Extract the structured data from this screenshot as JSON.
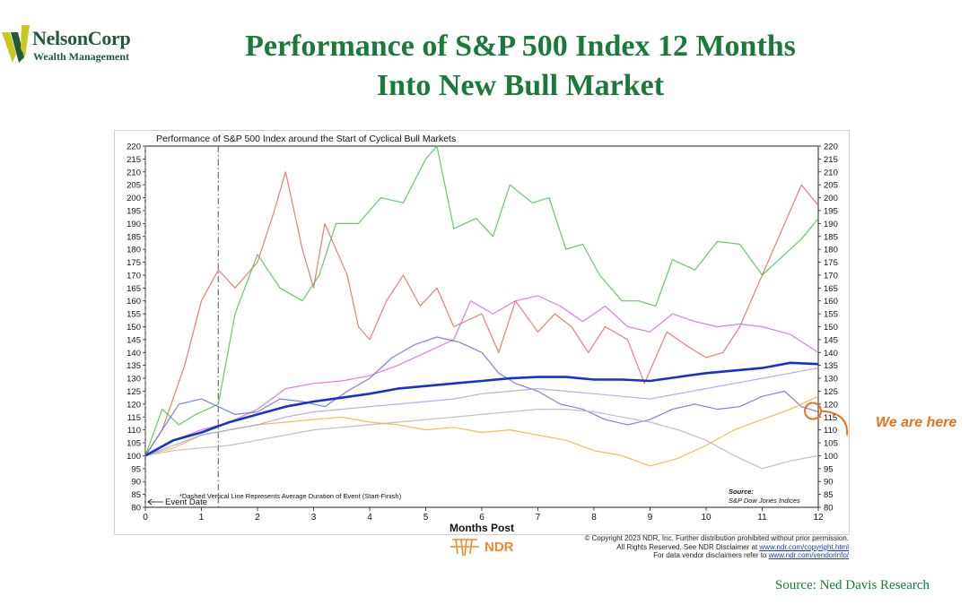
{
  "logo": {
    "name": "NelsonCorp",
    "tagline": "Wealth Management"
  },
  "slide": {
    "title_line1": "Performance of S&P 500 Index 12 Months",
    "title_line2": "Into New Bull Market",
    "annotation": "We are here",
    "source": "Source: Ned Davis Research"
  },
  "footer": {
    "ndr_logo": "NDR",
    "copyright_line1": "© Copyright 2023 NDR, Inc. Further distribution prohibited without prior permission.",
    "copyright_line2": "All Rights Reserved. See NDR Disclaimer at",
    "copyright_link1": "www.ndr.com/copyright.html",
    "copyright_line3": "For data vendor disclaimers refer to",
    "copyright_link2": "www.ndr.com/vendorinfo/"
  },
  "colors": {
    "title_green": "#1b7a3a",
    "average_line": "#1a2fd0",
    "annotation_orange": "#e8711b"
  },
  "chart_data": {
    "type": "line",
    "title": "Performance of S&P 500 Index around the Start of Cyclical Bull Markets",
    "xlabel": "Months Post",
    "ylabel": "",
    "xlim": [
      0,
      12
    ],
    "ylim": [
      80,
      220
    ],
    "x_ticks": [
      0,
      1,
      2,
      3,
      4,
      5,
      6,
      7,
      8,
      9,
      10,
      11,
      12
    ],
    "y_ticks": [
      80,
      85,
      90,
      95,
      100,
      105,
      110,
      115,
      120,
      125,
      130,
      135,
      140,
      145,
      150,
      155,
      160,
      165,
      170,
      175,
      180,
      185,
      190,
      195,
      200,
      205,
      210,
      215,
      220
    ],
    "y_axis_both_sides": true,
    "grid": false,
    "event_date_label": "Event Date",
    "vertical_lines": [
      {
        "x": 0,
        "style": "dashed"
      },
      {
        "x": 1.3,
        "style": "dash-dot"
      }
    ],
    "note": "*Dashed Vertical Line Represents Average Duration of Event (Start-Finish)",
    "source_label": "Source:",
    "source_value": "S&P Dow Jones Indices",
    "series": [
      {
        "name": "",
        "role": "average",
        "color": "#1a2fd0",
        "points": [
          [
            0,
            100
          ],
          [
            0.5,
            106
          ],
          [
            1,
            109
          ],
          [
            1.5,
            113
          ],
          [
            2,
            116
          ],
          [
            2.5,
            119
          ],
          [
            3,
            121
          ],
          [
            3.5,
            122.5
          ],
          [
            4,
            124
          ],
          [
            4.5,
            126
          ],
          [
            5,
            127
          ],
          [
            5.5,
            128
          ],
          [
            6,
            129
          ],
          [
            6.5,
            130
          ],
          [
            7,
            130.5
          ],
          [
            7.5,
            130.5
          ],
          [
            8,
            129.5
          ],
          [
            8.5,
            129.5
          ],
          [
            9,
            129
          ],
          [
            9.5,
            130.5
          ],
          [
            10,
            132
          ],
          [
            10.5,
            133
          ],
          [
            11,
            134
          ],
          [
            11.5,
            136
          ],
          [
            12,
            135.5
          ]
        ]
      },
      {
        "name": "",
        "color": "#e06a5a",
        "points": [
          [
            0,
            100
          ],
          [
            0.3,
            110
          ],
          [
            0.7,
            135
          ],
          [
            1,
            160
          ],
          [
            1.3,
            172
          ],
          [
            1.6,
            165
          ],
          [
            2,
            175
          ],
          [
            2.3,
            195
          ],
          [
            2.5,
            210
          ],
          [
            2.8,
            180
          ],
          [
            3,
            165
          ],
          [
            3.2,
            190
          ],
          [
            3.4,
            180
          ],
          [
            3.6,
            170
          ],
          [
            3.8,
            150
          ],
          [
            4,
            145
          ],
          [
            4.3,
            160
          ],
          [
            4.6,
            170
          ],
          [
            4.9,
            158
          ],
          [
            5.2,
            165
          ],
          [
            5.5,
            150
          ],
          [
            6,
            155
          ],
          [
            6.3,
            140
          ],
          [
            6.6,
            160
          ],
          [
            7,
            148
          ],
          [
            7.3,
            155
          ],
          [
            7.6,
            150
          ],
          [
            7.9,
            140
          ],
          [
            8.2,
            150
          ],
          [
            8.6,
            145
          ],
          [
            8.9,
            128
          ],
          [
            9.3,
            148
          ],
          [
            9.7,
            142
          ],
          [
            10,
            138
          ],
          [
            10.3,
            140
          ],
          [
            10.6,
            150
          ],
          [
            10.9,
            165
          ],
          [
            11.3,
            185
          ],
          [
            11.7,
            205
          ],
          [
            12,
            197
          ]
        ]
      },
      {
        "name": "",
        "color": "#4bbf4b",
        "points": [
          [
            0,
            100
          ],
          [
            0.3,
            118
          ],
          [
            0.6,
            112
          ],
          [
            0.9,
            116
          ],
          [
            1.3,
            120
          ],
          [
            1.6,
            155
          ],
          [
            2,
            178
          ],
          [
            2.4,
            165
          ],
          [
            2.8,
            160
          ],
          [
            3.1,
            170
          ],
          [
            3.4,
            190
          ],
          [
            3.8,
            190
          ],
          [
            4.2,
            200
          ],
          [
            4.6,
            198
          ],
          [
            5,
            215
          ],
          [
            5.2,
            220
          ],
          [
            5.5,
            188
          ],
          [
            5.9,
            192
          ],
          [
            6.2,
            185
          ],
          [
            6.5,
            205
          ],
          [
            6.9,
            198
          ],
          [
            7.2,
            200
          ],
          [
            7.5,
            180
          ],
          [
            7.8,
            182
          ],
          [
            8.1,
            170
          ],
          [
            8.5,
            160
          ],
          [
            8.8,
            160
          ],
          [
            9.1,
            158
          ],
          [
            9.4,
            176
          ],
          [
            9.8,
            172
          ],
          [
            10.2,
            183
          ],
          [
            10.6,
            182
          ],
          [
            11,
            170
          ],
          [
            11.4,
            178
          ],
          [
            11.7,
            184
          ],
          [
            12,
            192
          ]
        ]
      },
      {
        "name": "",
        "color": "#d668d6",
        "points": [
          [
            0,
            100
          ],
          [
            0.5,
            106
          ],
          [
            1,
            110
          ],
          [
            1.5,
            113
          ],
          [
            2,
            118
          ],
          [
            2.5,
            126
          ],
          [
            3,
            128
          ],
          [
            3.5,
            129
          ],
          [
            4,
            131
          ],
          [
            4.5,
            135
          ],
          [
            5,
            140
          ],
          [
            5.5,
            145
          ],
          [
            5.8,
            160
          ],
          [
            6.2,
            155
          ],
          [
            6.6,
            160
          ],
          [
            7,
            162
          ],
          [
            7.4,
            158
          ],
          [
            7.8,
            152
          ],
          [
            8.2,
            158
          ],
          [
            8.6,
            150
          ],
          [
            9,
            148
          ],
          [
            9.4,
            155
          ],
          [
            9.8,
            152
          ],
          [
            10.2,
            150
          ],
          [
            10.6,
            151
          ],
          [
            11,
            150
          ],
          [
            11.5,
            147
          ],
          [
            12,
            140
          ]
        ]
      },
      {
        "name": "",
        "color": "#6a6ad8",
        "points": [
          [
            0,
            100
          ],
          [
            0.3,
            110
          ],
          [
            0.6,
            120
          ],
          [
            1,
            122
          ],
          [
            1.3,
            119
          ],
          [
            1.6,
            116
          ],
          [
            2,
            117
          ],
          [
            2.4,
            122
          ],
          [
            2.8,
            121
          ],
          [
            3.2,
            119
          ],
          [
            3.6,
            125
          ],
          [
            4,
            130
          ],
          [
            4.4,
            138
          ],
          [
            4.8,
            143
          ],
          [
            5.2,
            146
          ],
          [
            5.6,
            144
          ],
          [
            6,
            140
          ],
          [
            6.3,
            132
          ],
          [
            6.6,
            128
          ],
          [
            7,
            125
          ],
          [
            7.4,
            120
          ],
          [
            7.8,
            118
          ],
          [
            8.2,
            114
          ],
          [
            8.6,
            112
          ],
          [
            9,
            114
          ],
          [
            9.4,
            118
          ],
          [
            9.8,
            120
          ],
          [
            10.2,
            118
          ],
          [
            10.6,
            119
          ],
          [
            11,
            123
          ],
          [
            11.4,
            125
          ],
          [
            11.7,
            119
          ],
          [
            12,
            117
          ]
        ]
      },
      {
        "name": "",
        "color": "#f2b03c",
        "points": [
          [
            0,
            100
          ],
          [
            0.5,
            103
          ],
          [
            1,
            108
          ],
          [
            1.5,
            110
          ],
          [
            2,
            112
          ],
          [
            2.5,
            113
          ],
          [
            3,
            114
          ],
          [
            3.5,
            115
          ],
          [
            4,
            113
          ],
          [
            4.5,
            112
          ],
          [
            5,
            110
          ],
          [
            5.5,
            111
          ],
          [
            6,
            109
          ],
          [
            6.5,
            110
          ],
          [
            7,
            108
          ],
          [
            7.5,
            106
          ],
          [
            8,
            102
          ],
          [
            8.5,
            100
          ],
          [
            9,
            96
          ],
          [
            9.5,
            99
          ],
          [
            10,
            104
          ],
          [
            10.5,
            110
          ],
          [
            11,
            114
          ],
          [
            11.5,
            118
          ],
          [
            12,
            123
          ]
        ]
      },
      {
        "name": "",
        "color": "#9fa0e8",
        "points": [
          [
            0,
            100
          ],
          [
            0.5,
            104
          ],
          [
            1,
            108
          ],
          [
            1.5,
            110
          ],
          [
            2,
            112
          ],
          [
            2.5,
            115
          ],
          [
            3,
            117
          ],
          [
            3.5,
            118
          ],
          [
            4,
            119
          ],
          [
            4.5,
            120
          ],
          [
            5,
            121
          ],
          [
            5.5,
            122
          ],
          [
            6,
            124
          ],
          [
            6.5,
            125
          ],
          [
            7,
            126
          ],
          [
            7.5,
            125
          ],
          [
            8,
            124
          ],
          [
            8.5,
            123
          ],
          [
            9,
            122
          ],
          [
            9.5,
            124
          ],
          [
            10,
            126
          ],
          [
            10.5,
            128
          ],
          [
            11,
            130
          ],
          [
            11.5,
            132
          ],
          [
            12,
            134
          ]
        ]
      },
      {
        "name": "",
        "color": "#b5b5b5",
        "points": [
          [
            0,
            100
          ],
          [
            0.5,
            102
          ],
          [
            1,
            103
          ],
          [
            1.5,
            104
          ],
          [
            2,
            106
          ],
          [
            2.5,
            108
          ],
          [
            3,
            110
          ],
          [
            3.5,
            111
          ],
          [
            4,
            112
          ],
          [
            4.5,
            113
          ],
          [
            5,
            114
          ],
          [
            5.5,
            115
          ],
          [
            6,
            116
          ],
          [
            6.5,
            117
          ],
          [
            7,
            118
          ],
          [
            7.5,
            118
          ],
          [
            8,
            117
          ],
          [
            8.5,
            115
          ],
          [
            9,
            113
          ],
          [
            9.5,
            110
          ],
          [
            10,
            106
          ],
          [
            10.5,
            100
          ],
          [
            11,
            95
          ],
          [
            11.5,
            98
          ],
          [
            12,
            100
          ]
        ]
      }
    ]
  }
}
